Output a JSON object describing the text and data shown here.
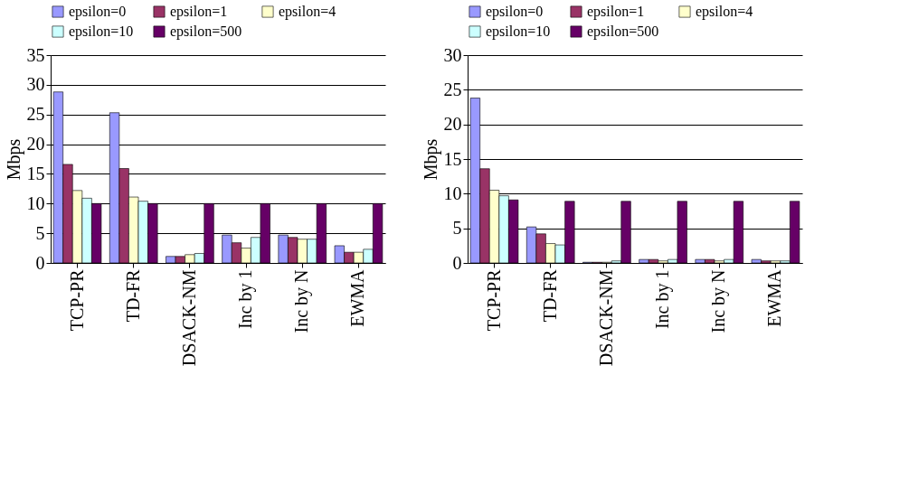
{
  "chart_data": [
    {
      "type": "bar",
      "ylabel": "Mbps",
      "categories": [
        "TCP-PR",
        "TD-FR",
        "DSACK-NM",
        "Inc by 1",
        "Inc by N",
        "EWMA"
      ],
      "ylim": [
        0,
        35
      ],
      "yticks": [
        0,
        5,
        10,
        15,
        20,
        25,
        30,
        35
      ],
      "grid": "y",
      "legend": "top",
      "series": [
        {
          "name": "epsilon=0",
          "color": "#9999ff",
          "values": [
            28.8,
            25.3,
            1.1,
            4.7,
            4.7,
            2.9
          ]
        },
        {
          "name": "epsilon=1",
          "color": "#993366",
          "values": [
            16.6,
            15.9,
            1.1,
            3.4,
            4.3,
            1.8
          ]
        },
        {
          "name": "epsilon=4",
          "color": "#ffffcc",
          "values": [
            12.2,
            11.1,
            1.4,
            2.5,
            4.0,
            1.8
          ]
        },
        {
          "name": "epsilon=10",
          "color": "#ccffff",
          "values": [
            10.9,
            10.4,
            1.6,
            4.3,
            4.0,
            2.3
          ]
        },
        {
          "name": "epsilon=500",
          "color": "#660066",
          "values": [
            10,
            10,
            10,
            10,
            10,
            10
          ]
        }
      ]
    },
    {
      "type": "bar",
      "ylabel": "Mbps",
      "categories": [
        "TCP-PR",
        "TD-FR",
        "DSACK-NM",
        "Inc by 1",
        "Inc by N",
        "EWMA"
      ],
      "ylim": [
        0,
        30
      ],
      "yticks": [
        0,
        5,
        10,
        15,
        20,
        25,
        30
      ],
      "grid": "y",
      "legend": "top",
      "series": [
        {
          "name": "epsilon=0",
          "color": "#9999ff",
          "values": [
            23.8,
            5.2,
            0.1,
            0.5,
            0.5,
            0.5
          ]
        },
        {
          "name": "epsilon=1",
          "color": "#993366",
          "values": [
            13.6,
            4.2,
            0.1,
            0.5,
            0.5,
            0.3
          ]
        },
        {
          "name": "epsilon=4",
          "color": "#ffffcc",
          "values": [
            10.5,
            2.8,
            0.1,
            0.3,
            0.3,
            0.3
          ]
        },
        {
          "name": "epsilon=10",
          "color": "#ccffff",
          "values": [
            9.7,
            2.6,
            0.3,
            0.5,
            0.5,
            0.3
          ]
        },
        {
          "name": "epsilon=500",
          "color": "#660066",
          "values": [
            9.1,
            8.9,
            8.9,
            8.9,
            8.9,
            8.9
          ]
        }
      ]
    }
  ]
}
